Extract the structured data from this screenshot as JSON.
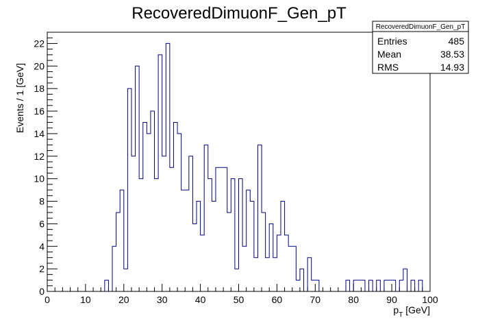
{
  "chart_data": {
    "type": "histogram",
    "title": "RecoveredDimuonF_Gen_pT",
    "xlabel": "p_T [GeV]",
    "xlabel_main": "p",
    "xlabel_sub": "T",
    "xlabel_unit": " [GeV]",
    "ylabel": "Events / 1 [GeV]",
    "xlim": [
      0,
      100
    ],
    "ylim": [
      0,
      23
    ],
    "bin_width": 1,
    "x_ticks": [
      0,
      10,
      20,
      30,
      40,
      50,
      60,
      70,
      80,
      90,
      100
    ],
    "y_ticks": [
      0,
      2,
      4,
      6,
      8,
      10,
      12,
      14,
      16,
      18,
      20,
      22
    ],
    "line_color": "#000080",
    "grid": false,
    "legend_position": "top-right",
    "values": [
      0,
      0,
      0,
      0,
      0,
      0,
      0,
      0,
      0,
      0,
      0,
      0,
      0,
      0,
      0,
      1,
      0,
      4,
      7,
      9,
      2,
      18,
      12,
      20,
      10,
      15,
      14,
      16,
      10,
      21,
      12,
      22,
      11,
      15,
      14,
      9,
      9,
      12,
      6,
      8,
      5,
      13,
      10,
      8,
      11,
      11,
      11,
      7,
      10,
      2,
      10,
      4,
      9,
      8,
      3,
      13,
      7,
      3,
      6,
      3,
      5,
      8,
      5,
      4,
      4,
      1,
      2,
      0,
      3,
      1,
      1,
      0,
      0,
      0,
      0,
      0,
      0,
      0,
      1,
      0,
      1,
      1,
      1,
      0,
      1,
      0,
      1,
      0,
      1,
      1,
      1,
      0,
      1,
      2,
      0,
      1,
      0,
      1,
      0,
      0
    ],
    "stats": {
      "name": "RecoveredDimuonF_Gen_pT",
      "rows": [
        {
          "label": "Entries",
          "value": "485"
        },
        {
          "label": "Mean",
          "value": "38.53"
        },
        {
          "label": "RMS",
          "value": "14.93"
        }
      ]
    }
  }
}
